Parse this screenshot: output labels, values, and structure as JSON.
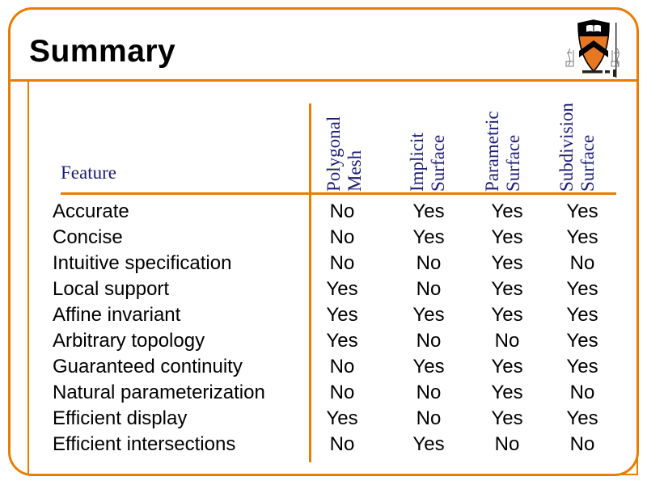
{
  "slide": {
    "title": "Summary",
    "logo_name": "princeton-university-shield"
  },
  "table": {
    "feature_header": "Feature",
    "columns": [
      {
        "label": "Polygonal\nMesh"
      },
      {
        "label": "Implicit\nSurface"
      },
      {
        "label": "Parametric\nSurface"
      },
      {
        "label": "Subdivision\nSurface"
      }
    ],
    "rows": [
      {
        "feature": "Accurate",
        "values": [
          "No",
          "Yes",
          "Yes",
          "Yes"
        ]
      },
      {
        "feature": "Concise",
        "values": [
          "No",
          "Yes",
          "Yes",
          "Yes"
        ]
      },
      {
        "feature": "Intuitive specification",
        "values": [
          "No",
          "No",
          "Yes",
          "No"
        ]
      },
      {
        "feature": "Local support",
        "values": [
          "Yes",
          "No",
          "Yes",
          "Yes"
        ]
      },
      {
        "feature": "Affine invariant",
        "values": [
          "Yes",
          "Yes",
          "Yes",
          "Yes"
        ]
      },
      {
        "feature": "Arbitrary topology",
        "values": [
          "Yes",
          "No",
          "No",
          "Yes"
        ]
      },
      {
        "feature": "Guaranteed continuity",
        "values": [
          "No",
          "Yes",
          "Yes",
          "Yes"
        ]
      },
      {
        "feature": "Natural parameterization",
        "values": [
          "No",
          "No",
          "Yes",
          "No"
        ]
      },
      {
        "feature": "Efficient display",
        "values": [
          "Yes",
          "No",
          "Yes",
          "Yes"
        ]
      },
      {
        "feature": "Efficient intersections",
        "values": [
          "No",
          "Yes",
          "No",
          "No"
        ]
      }
    ]
  },
  "colors": {
    "accent_orange": "#E87D00",
    "heading_navy": "#1C1C73",
    "body_text": "#000000",
    "princeton_orange": "#E87722"
  }
}
